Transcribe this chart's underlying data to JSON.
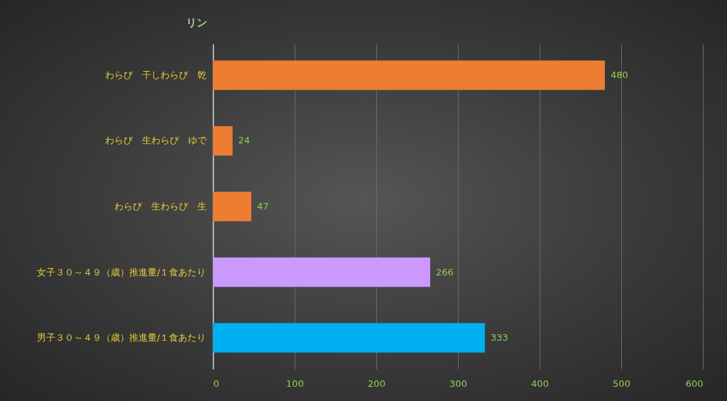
{
  "chart_data": {
    "type": "bar",
    "orientation": "horizontal",
    "title": "リン",
    "categories": [
      "わらび　干しわらび　乾",
      "わらび　生わらび　ゆで",
      "わらび　生わらび　生",
      "女子３０～４９（歳）推進量/１食あたり",
      "男子３０～４９（歳）推進量/１食あたり"
    ],
    "values": [
      480,
      24,
      47,
      266,
      333
    ],
    "colors": [
      "#ed7d31",
      "#ed7d31",
      "#ed7d31",
      "#cc99ff",
      "#00b0f0"
    ],
    "xlim": [
      0,
      600
    ],
    "xticks": [
      0,
      100,
      200,
      300,
      400,
      500,
      600
    ],
    "grid": "x",
    "data_labels": true
  }
}
